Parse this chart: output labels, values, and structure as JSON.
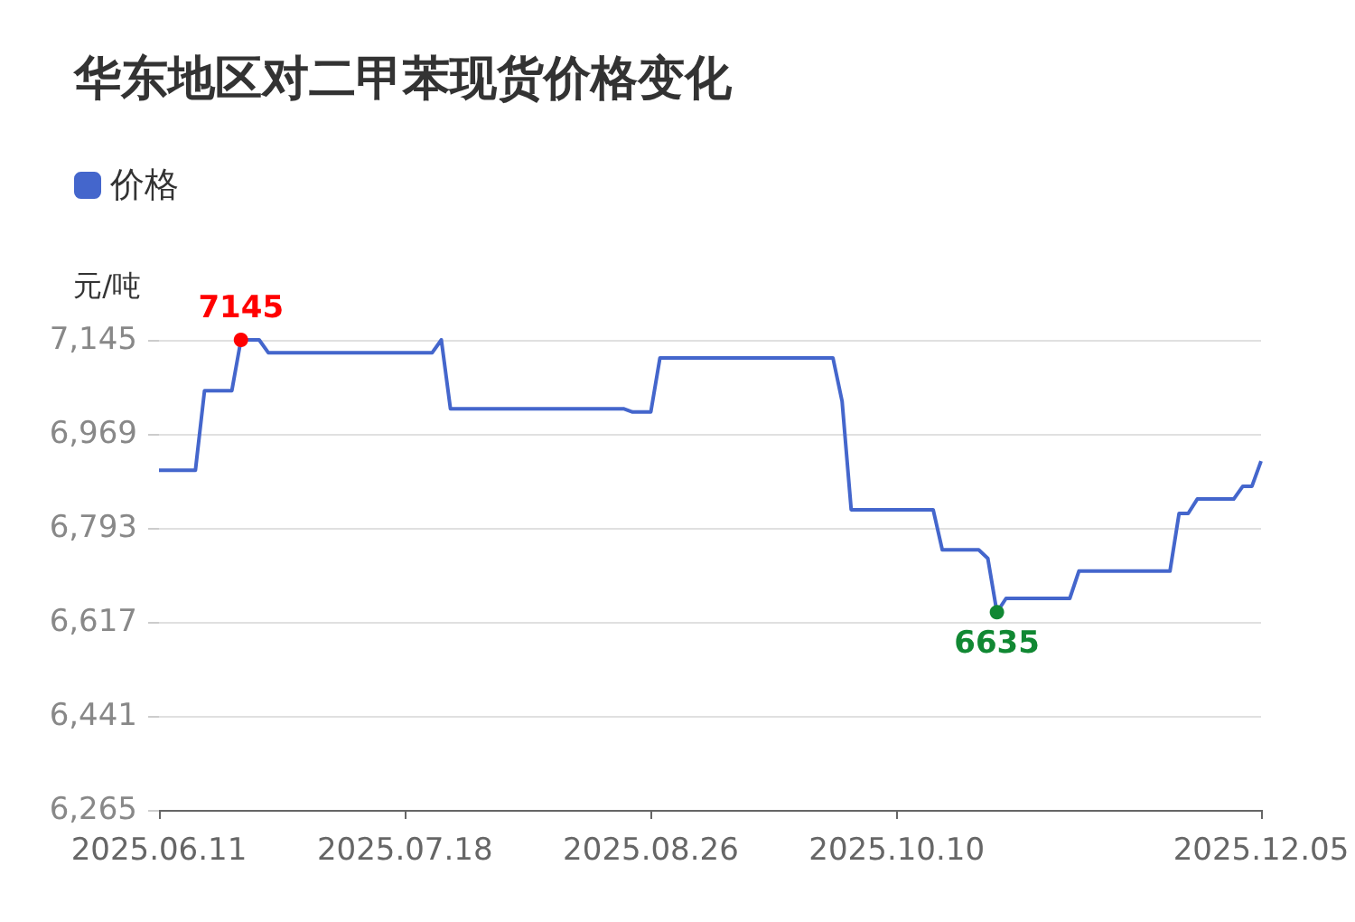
{
  "chart_data": {
    "type": "line",
    "title": "华东地区对二甲苯现货价格变化",
    "ylabel": "元/吨",
    "categories": [
      "2025.06.11",
      null,
      null,
      null,
      null,
      null,
      null,
      null,
      null,
      null,
      null,
      null,
      null,
      null,
      null,
      null,
      null,
      null,
      null,
      null,
      null,
      null,
      null,
      null,
      null,
      null,
      null,
      "2025.07.18",
      null,
      null,
      null,
      null,
      null,
      null,
      null,
      null,
      null,
      null,
      null,
      null,
      null,
      null,
      null,
      null,
      null,
      null,
      null,
      null,
      null,
      null,
      null,
      null,
      null,
      null,
      "2025.08.26",
      null,
      null,
      null,
      null,
      null,
      null,
      null,
      null,
      null,
      null,
      null,
      null,
      null,
      null,
      null,
      null,
      null,
      null,
      null,
      null,
      null,
      null,
      null,
      null,
      null,
      null,
      "2025.10.10",
      null,
      null,
      null,
      null,
      null,
      null,
      null,
      null,
      null,
      null,
      null,
      null,
      null,
      null,
      null,
      null,
      null,
      null,
      null,
      null,
      null,
      null,
      null,
      null,
      null,
      null,
      null,
      null,
      null,
      null,
      null,
      null,
      null,
      null,
      null,
      null,
      null,
      null,
      null,
      "2025.12.05"
    ],
    "series": [
      {
        "name": "价格",
        "color": "#4466cc",
        "values": [
          6901,
          6901,
          6901,
          6901,
          6901,
          7050,
          7050,
          7050,
          7050,
          7145,
          7145,
          7145,
          7121,
          7121,
          7121,
          7121,
          7121,
          7121,
          7121,
          7121,
          7121,
          7121,
          7121,
          7121,
          7121,
          7121,
          7121,
          7121,
          7121,
          7121,
          7121,
          7145,
          7016,
          7016,
          7016,
          7016,
          7016,
          7016,
          7016,
          7016,
          7016,
          7016,
          7016,
          7016,
          7016,
          7016,
          7016,
          7016,
          7016,
          7016,
          7016,
          7016,
          7010,
          7010,
          7010,
          7111,
          7111,
          7111,
          7111,
          7111,
          7111,
          7111,
          7111,
          7111,
          7111,
          7111,
          7111,
          7111,
          7111,
          7111,
          7111,
          7111,
          7111,
          7111,
          7111,
          7030,
          6827,
          6827,
          6827,
          6827,
          6827,
          6827,
          6827,
          6827,
          6827,
          6827,
          6752,
          6752,
          6752,
          6752,
          6752,
          6736,
          6635,
          6661,
          6661,
          6661,
          6661,
          6661,
          6661,
          6661,
          6661,
          6712,
          6712,
          6712,
          6712,
          6712,
          6712,
          6712,
          6712,
          6712,
          6712,
          6712,
          6820,
          6820,
          6847,
          6847,
          6847,
          6847,
          6847,
          6871,
          6871,
          6918
        ],
        "value_labels": [
          null,
          null,
          null,
          null,
          null,
          null,
          null,
          null,
          null,
          "7145",
          null,
          null,
          null,
          null,
          null,
          null,
          null,
          null,
          null,
          null,
          null,
          null,
          null,
          null,
          null,
          null,
          null,
          null,
          null,
          null,
          null,
          null,
          null,
          null,
          null,
          null,
          null,
          null,
          null,
          null,
          null,
          null,
          null,
          null,
          null,
          null,
          null,
          null,
          null,
          null,
          null,
          null,
          null,
          null,
          null,
          null,
          null,
          null,
          null,
          null,
          null,
          null,
          null,
          null,
          null,
          null,
          null,
          null,
          null,
          null,
          null,
          null,
          null,
          null,
          null,
          null,
          null,
          null,
          null,
          null,
          null,
          null,
          null,
          null,
          null,
          null,
          null,
          null,
          null,
          null,
          null,
          null,
          "6635",
          null,
          null,
          null,
          null,
          null,
          null,
          null,
          null,
          null,
          null,
          null,
          null,
          null,
          null,
          null,
          null,
          null,
          null,
          null,
          null,
          null,
          null,
          null,
          null,
          null,
          null,
          null,
          null,
          null
        ]
      }
    ],
    "ylim": [
      6265,
      7145
    ],
    "yticks": [
      {
        "value": 6265,
        "label": "6,265"
      },
      {
        "value": 6441,
        "label": "6,441"
      },
      {
        "value": 6617,
        "label": "6,617"
      },
      {
        "value": 6793,
        "label": "6,793"
      },
      {
        "value": 6969,
        "label": "6,969"
      },
      {
        "value": 7145,
        "label": "7,145"
      }
    ],
    "grid": "y",
    "legend": "top left"
  }
}
